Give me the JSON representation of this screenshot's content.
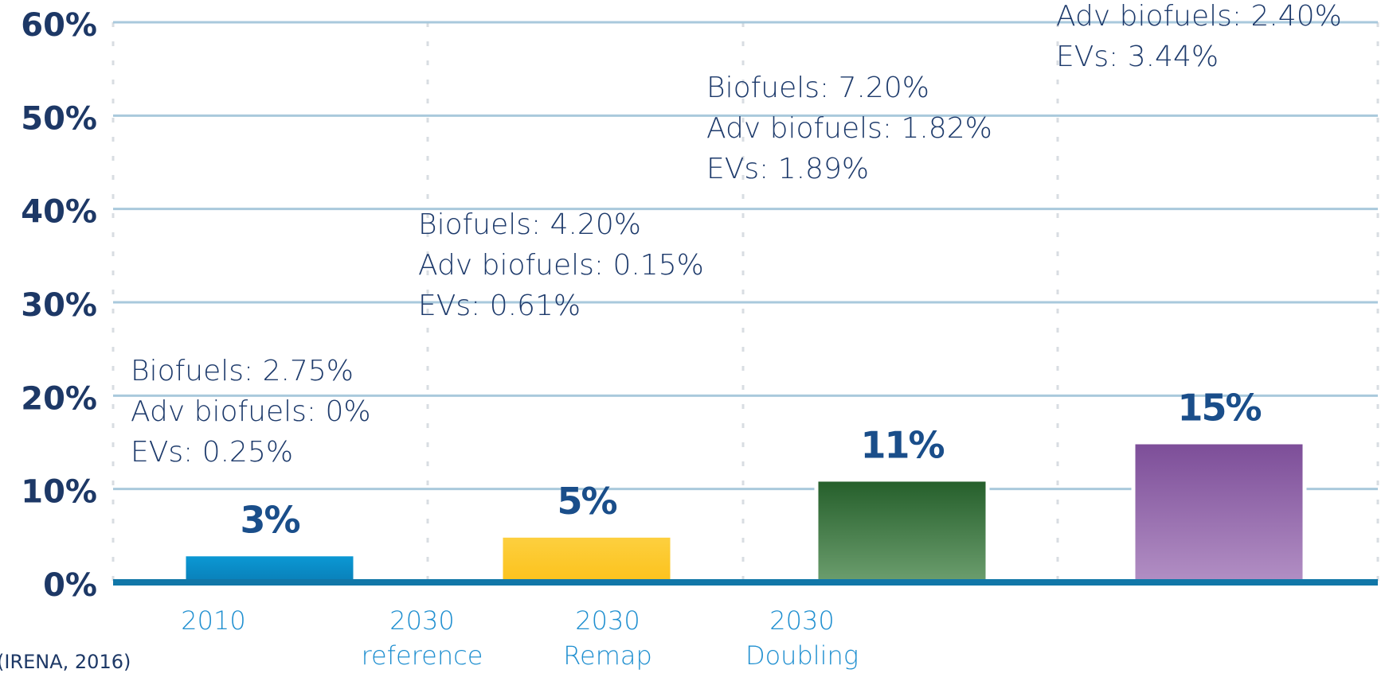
{
  "chart_data": {
    "type": "bar",
    "categories": [
      "2010",
      "2030\nreference",
      "2030\nRemap",
      "2030\nDoubling"
    ],
    "values": [
      3,
      5,
      11,
      15
    ],
    "value_labels": [
      "3%",
      "5%",
      "11%",
      "15%"
    ],
    "colors": [
      [
        "#0b9ad6",
        "#0a7fb8"
      ],
      [
        "#fdd040",
        "#fcc21c"
      ],
      [
        "#245e2a",
        "#6c9e6e"
      ],
      [
        "#7c4d98",
        "#b28fc4"
      ]
    ],
    "ylim": [
      0,
      60
    ],
    "yticks": [
      {
        "value": 0,
        "label": "0%"
      },
      {
        "value": 10,
        "label": "10%"
      },
      {
        "value": 20,
        "label": "20%"
      },
      {
        "value": 30,
        "label": "30%"
      },
      {
        "value": 40,
        "label": "40%"
      },
      {
        "value": 50,
        "label": "50%"
      },
      {
        "value": 60,
        "label": "60%"
      }
    ],
    "grid": true,
    "annotations": [
      [
        "Biofuels: 2.75%",
        "Adv biofuels: 0%",
        "EVs: 0.25%"
      ],
      [
        "Biofuels: 4.20%",
        "Adv biofuels: 0.15%",
        "EVs: 0.61%"
      ],
      [
        "Biofuels: 7.20%",
        "Adv biofuels: 1.82%",
        "EVs: 1.89%"
      ],
      [
        "Adv biofuels: 2.40%",
        "EVs: 3.44%"
      ]
    ],
    "source": "(IRENA, 2016)"
  }
}
